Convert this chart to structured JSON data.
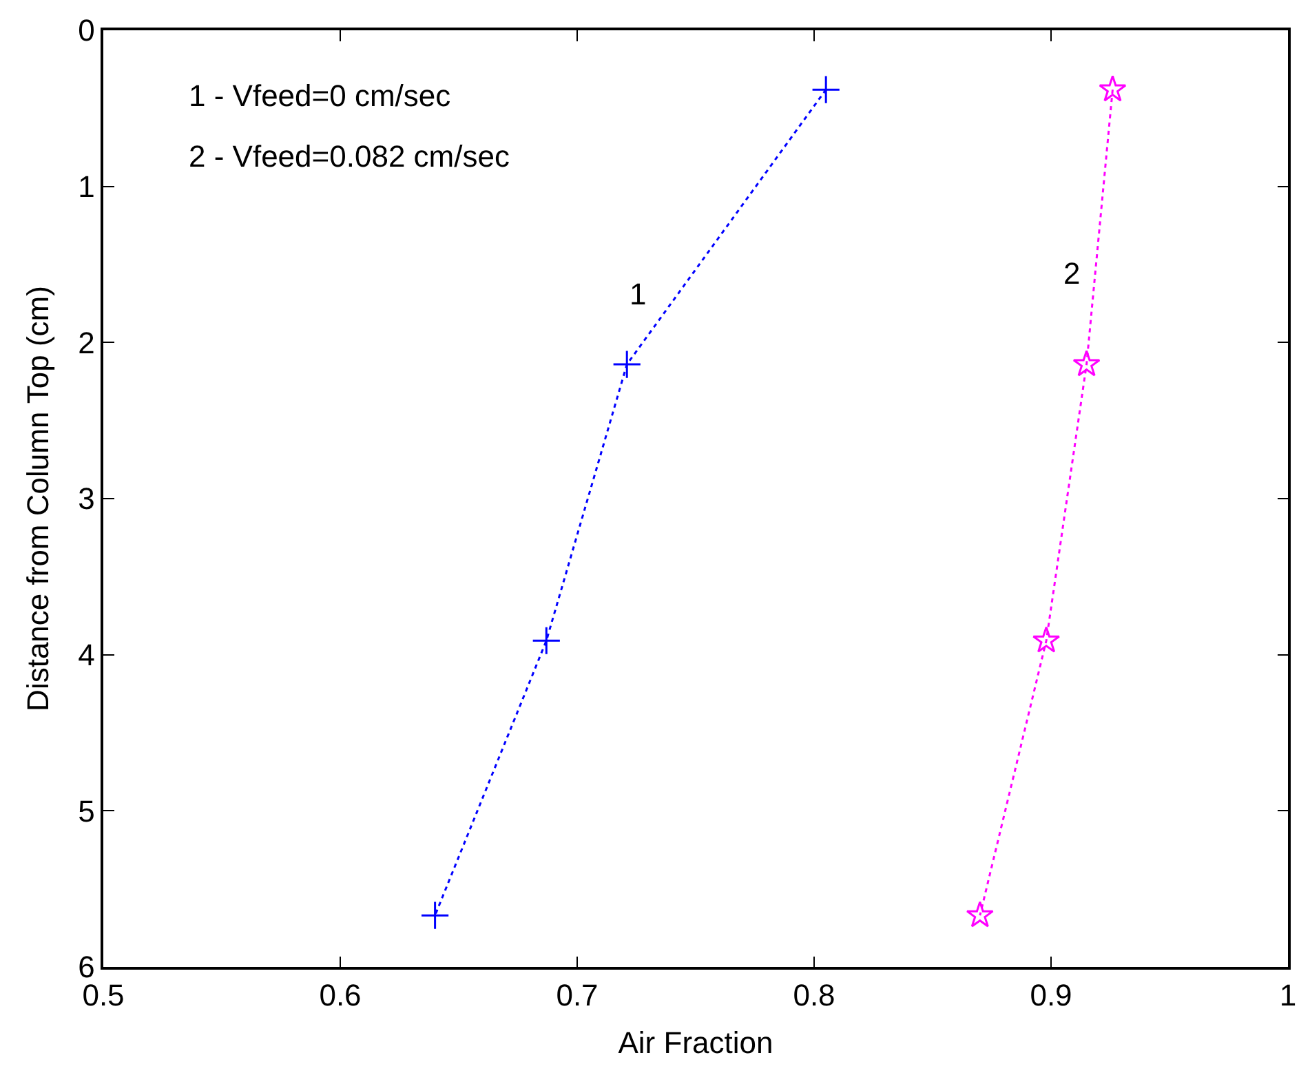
{
  "chart_data": {
    "type": "line",
    "xlabel": "Air Fraction",
    "ylabel": "Distance from Column Top (cm)",
    "xlim": [
      0.5,
      1
    ],
    "xticks": [
      0.5,
      0.6,
      0.7,
      0.8,
      0.9,
      1
    ],
    "ylim": [
      6,
      0
    ],
    "yticks": [
      0,
      1,
      2,
      3,
      4,
      5,
      6
    ],
    "line_style": "dotted",
    "series": [
      {
        "color": "#0000ff",
        "marker": "cross",
        "x": [
          0.805,
          0.721,
          0.687,
          0.64
        ],
        "values": [
          0.38,
          2.14,
          3.91,
          5.67
        ]
      },
      {
        "color": "#ff00ff",
        "marker": "star",
        "x": [
          0.926,
          0.915,
          0.898,
          0.87
        ],
        "values": [
          0.38,
          2.14,
          3.91,
          5.67
        ]
      }
    ],
    "annotations": [
      "1 - Vfeed=0 cm/sec",
      "2 - Vfeed=0.082 cm/sec",
      "1",
      "2"
    ]
  }
}
